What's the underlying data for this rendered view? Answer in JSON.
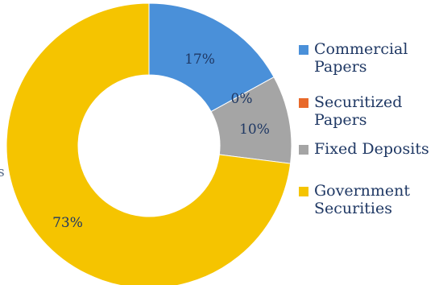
{
  "chart_data": {
    "type": "pie",
    "donut": true,
    "slices": [
      {
        "label": "Commercial Papers",
        "legend_lines": [
          "Commercial",
          "Papers"
        ],
        "value": 17,
        "data_label": "17%",
        "color": "#4a90d9"
      },
      {
        "label": "Securitized Papers",
        "legend_lines": [
          "Securitized",
          "Papers"
        ],
        "value": 0,
        "data_label": "0%",
        "color": "#e8692a"
      },
      {
        "label": "Fixed Deposits",
        "legend_lines": [
          "Fixed Deposits"
        ],
        "value": 10,
        "data_label": "10%",
        "color": "#a5a5a5"
      },
      {
        "label": "Government Securities",
        "legend_lines": [
          "Government",
          "Securities"
        ],
        "value": 73,
        "data_label": "73%",
        "color": "#f5c400"
      }
    ],
    "legend_position": "right"
  },
  "stray_text": "s"
}
